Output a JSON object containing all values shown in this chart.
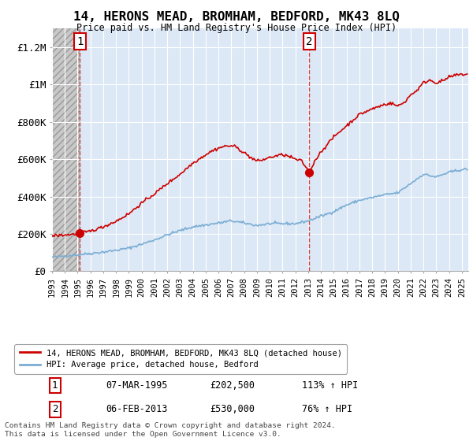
{
  "title": "14, HERONS MEAD, BROMHAM, BEDFORD, MK43 8LQ",
  "subtitle": "Price paid vs. HM Land Registry's House Price Index (HPI)",
  "xlim_start": 1993,
  "xlim_end": 2025.5,
  "ylim": [
    0,
    1300000
  ],
  "yticks": [
    0,
    200000,
    400000,
    600000,
    800000,
    1000000,
    1200000
  ],
  "ytick_labels": [
    "£0",
    "£200K",
    "£400K",
    "£600K",
    "£800K",
    "£1M",
    "£1.2M"
  ],
  "sale1_date": 1995.18,
  "sale1_price": 202500,
  "sale1_label": "1",
  "sale2_date": 2013.09,
  "sale2_price": 530000,
  "sale2_label": "2",
  "legend_property": "14, HERONS MEAD, BROMHAM, BEDFORD, MK43 8LQ (detached house)",
  "legend_hpi": "HPI: Average price, detached house, Bedford",
  "sale1_row": "07-MAR-1995",
  "sale1_price_str": "£202,500",
  "sale1_hpi": "113% ↑ HPI",
  "sale2_row": "06-FEB-2013",
  "sale2_price_str": "£530,000",
  "sale2_hpi": "76% ↑ HPI",
  "footer": "Contains HM Land Registry data © Crown copyright and database right 2024.\nThis data is licensed under the Open Government Licence v3.0.",
  "property_color": "#cc0000",
  "hpi_color": "#7aadd4",
  "grid_color": "#cccccc",
  "background_blue": "#dce8f5",
  "background_hatch": "#e0e0e0"
}
